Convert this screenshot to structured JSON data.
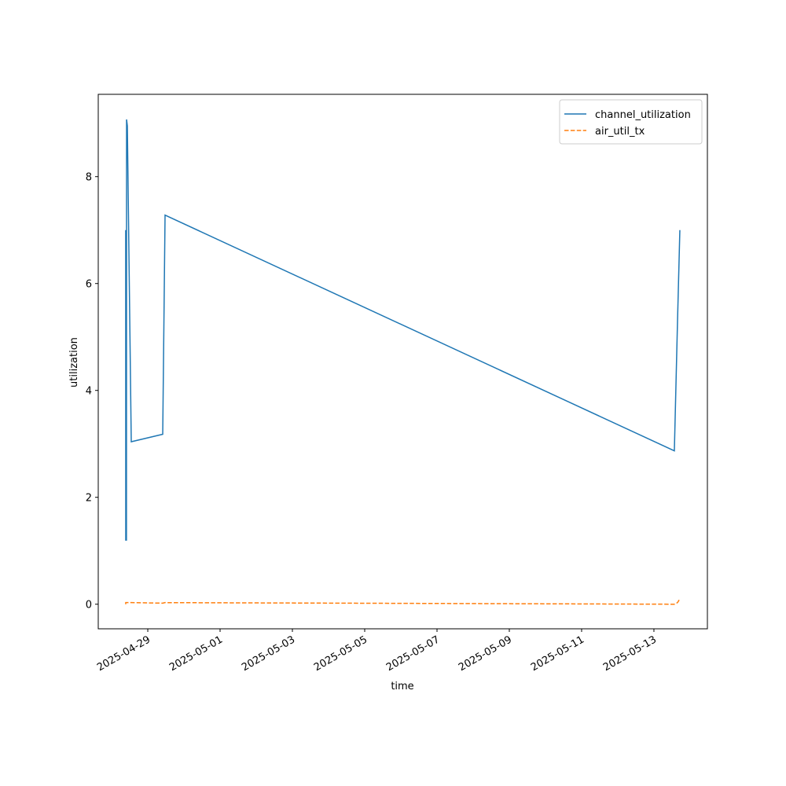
{
  "chart_data": {
    "type": "line",
    "xlabel": "time",
    "ylabel": "utilization",
    "x": [
      "2025-04-28T09:20",
      "2025-04-28T09:22",
      "2025-04-28T09:50",
      "2025-04-28T09:55",
      "2025-04-28T10:26",
      "2025-04-28T13:02",
      "2025-04-29T09:55",
      "2025-04-29T11:28",
      "2025-05-13T13:34",
      "2025-05-13T15:39",
      "2025-05-13T17:13"
    ],
    "series": [
      {
        "name": "channel_utilization",
        "color": "#1f77b4",
        "dash": "solid",
        "values": [
          7.0,
          1.2,
          1.2,
          9.07,
          8.95,
          3.04,
          3.18,
          7.28,
          2.87,
          5.28,
          7.0
        ]
      },
      {
        "name": "air_util_tx",
        "color": "#ff7f0e",
        "dash": "dashed",
        "values": [
          0.0,
          0.03,
          0.03,
          0.03,
          0.03,
          0.03,
          0.02,
          0.03,
          0.0,
          0.03,
          0.1
        ]
      }
    ],
    "xlim": [
      "2025-04-27T15:07",
      "2025-05-14T11:30"
    ],
    "xticks": [
      "2025-04-29",
      "2025-05-01",
      "2025-05-03",
      "2025-05-05",
      "2025-05-07",
      "2025-05-09",
      "2025-05-11",
      "2025-05-13"
    ],
    "ylim": [
      -0.46,
      9.54
    ],
    "yticks": [
      0,
      2,
      4,
      6,
      8
    ],
    "legend": "upper right"
  }
}
